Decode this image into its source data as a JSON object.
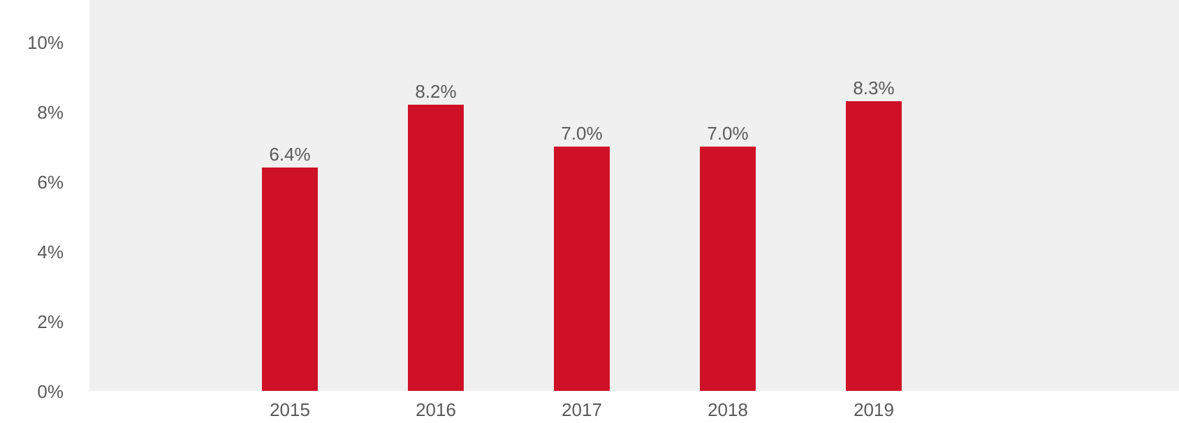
{
  "chart_data": {
    "type": "bar",
    "categories": [
      "2015",
      "2016",
      "2017",
      "2018",
      "2019"
    ],
    "values": [
      6.4,
      8.2,
      7.0,
      7.0,
      8.3
    ],
    "data_labels": [
      "6.4%",
      "8.2%",
      "7.0%",
      "7.0%",
      "8.3%"
    ],
    "title": "",
    "xlabel": "",
    "ylabel": "",
    "ylim": [
      0,
      11
    ],
    "yticks": [
      0,
      2,
      4,
      6,
      8,
      10
    ],
    "ytick_labels": [
      "0%",
      "2%",
      "4%",
      "6%",
      "8%",
      "10%"
    ],
    "grid": false,
    "legend": "none",
    "colors": {
      "bar": "#CE1126",
      "plot_background": "#F0F0F0",
      "text": "#5A5A5A"
    }
  }
}
